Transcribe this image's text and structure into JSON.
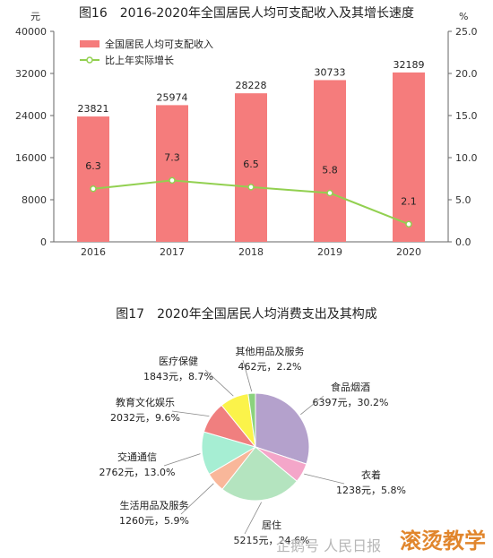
{
  "chart_data": [
    {
      "type": "bar",
      "title": "图16　2016-2020年全国居民人均可支配收入及其增长速度",
      "categories": [
        "2016",
        "2017",
        "2018",
        "2019",
        "2020"
      ],
      "series": [
        {
          "name": "全国居民人均可支配收入",
          "values": [
            23821,
            25974,
            28228,
            30733,
            32189
          ],
          "axis": "left",
          "color": "#f57c7c"
        },
        {
          "name": "比上年实际增长",
          "type": "line",
          "values": [
            6.3,
            7.3,
            6.5,
            5.8,
            2.1
          ],
          "axis": "right",
          "color": "#92d050"
        }
      ],
      "y_left": {
        "unit": "元",
        "lim": [
          0,
          40000
        ],
        "ticks": [
          0,
          8000,
          16000,
          24000,
          32000,
          40000
        ]
      },
      "y_right": {
        "unit": "%",
        "lim": [
          0,
          25
        ],
        "ticks": [
          "0.0",
          "5.0",
          "10.0",
          "15.0",
          "20.0",
          "25.0"
        ]
      },
      "legend": "top-left",
      "grid": false
    },
    {
      "type": "pie",
      "title": "图17　2020年全国居民人均消费支出及其构成",
      "slices": [
        {
          "name": "食品烟酒",
          "value": 6397,
          "label": "6397元，30.2%",
          "color": "#b4a1cc"
        },
        {
          "name": "衣着",
          "value": 1238,
          "label": "1238元，5.8%",
          "color": "#f4a6c9"
        },
        {
          "name": "居住",
          "value": 5215,
          "label": "5215元，24.6%",
          "color": "#b4e4bf"
        },
        {
          "name": "生活用品及服务",
          "value": 1260,
          "label": "1260元，5.9%",
          "color": "#f9b79a"
        },
        {
          "name": "交通通信",
          "value": 2762,
          "label": "2762元，13.0%",
          "color": "#a6eed3"
        },
        {
          "name": "教育文化娱乐",
          "value": 2032,
          "label": "2032元，9.6%",
          "color": "#f07f7f"
        },
        {
          "name": "医疗保健",
          "value": 1843,
          "label": "1843元，8.7%",
          "color": "#fbf34a"
        },
        {
          "name": "其他用品及服务",
          "value": 462,
          "label": "462元，2.2%",
          "color": "#8bd27e"
        }
      ]
    }
  ],
  "watermark": "企鹅号 人民日报",
  "brand": "滚烫教学"
}
